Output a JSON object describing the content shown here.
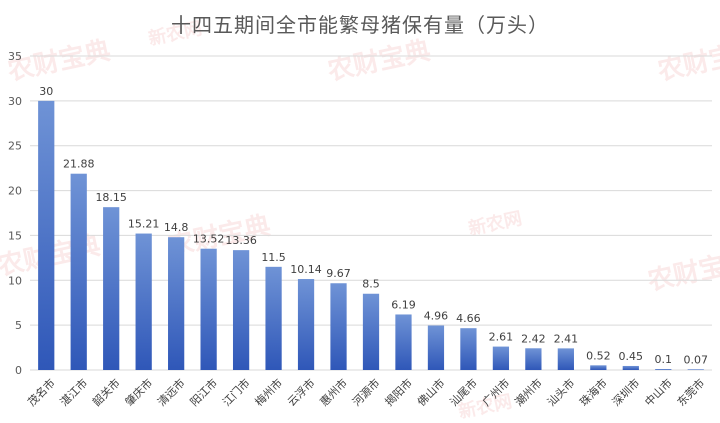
{
  "chart_data": {
    "type": "bar",
    "title": "十四五期间全市能繁母猪保有量（万头）",
    "xlabel": "",
    "ylabel": "",
    "ylim": [
      0,
      35
    ],
    "yticks": [
      0,
      5,
      10,
      15,
      20,
      25,
      30,
      35
    ],
    "grid": true,
    "legend": "none",
    "categories": [
      "茂名市",
      "湛江市",
      "韶关市",
      "肇庆市",
      "清远市",
      "阳江市",
      "江门市",
      "梅州市",
      "云浮市",
      "惠州市",
      "河源市",
      "揭阳市",
      "佛山市",
      "汕尾市",
      "广州市",
      "潮州市",
      "汕头市",
      "珠海市",
      "深圳市",
      "中山市",
      "东莞市"
    ],
    "values": [
      30,
      21.88,
      18.15,
      15.21,
      14.8,
      13.52,
      13.36,
      11.5,
      10.14,
      9.67,
      8.5,
      6.19,
      4.96,
      4.66,
      2.61,
      2.42,
      2.41,
      0.52,
      0.45,
      0.1,
      0.07
    ],
    "data_labels": [
      "30",
      "21.88",
      "18.15",
      "15.21",
      "14.8",
      "13.52",
      "13.36",
      "11.5",
      "10.14",
      "9.67",
      "8.5",
      "6.19",
      "4.96",
      "4.66",
      "2.61",
      "2.42",
      "2.41",
      "0.52",
      "0.45",
      "0.1",
      "0.07"
    ],
    "colors": {
      "bar_top": "#6f93d6",
      "bar_bottom": "#2f57b8",
      "grid": "#d9d9d9",
      "text": "#595959"
    }
  },
  "watermark": {
    "text": "农财宝典",
    "sub": "新农网"
  }
}
